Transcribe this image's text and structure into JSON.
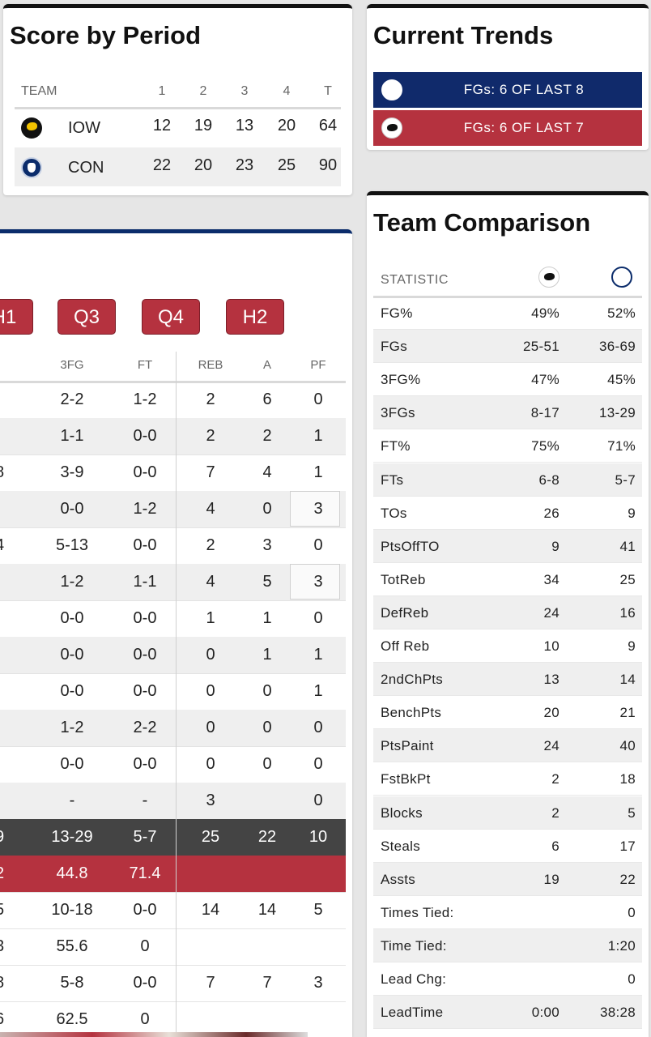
{
  "score_by_period": {
    "title": "Score by Period",
    "headers": [
      "TEAM",
      "1",
      "2",
      "3",
      "4",
      "T"
    ],
    "rows": [
      {
        "team": "IOW",
        "logo": "iowa-hawkeye-icon",
        "scores": [
          "12",
          "19",
          "13",
          "20",
          "64"
        ]
      },
      {
        "team": "CON",
        "logo": "uconn-husky-icon",
        "scores": [
          "22",
          "20",
          "23",
          "25",
          "90"
        ]
      }
    ]
  },
  "current_trends": {
    "title": "Current Trends",
    "rows": [
      {
        "text": "FGs: 6 OF LAST 8",
        "color": "#102a6b",
        "logo": "uconn-husky-icon"
      },
      {
        "text": "FGs: 6 OF LAST 7",
        "color": "#b5323f",
        "logo": "iowa-hawkeye-icon"
      }
    ]
  },
  "team_comparison": {
    "title": "Team Comparison",
    "header_label": "STATISTIC",
    "rows": [
      {
        "label": "FG%",
        "iow": "49%",
        "con": "52%"
      },
      {
        "label": "FGs",
        "iow": "25-51",
        "con": "36-69"
      },
      {
        "label": "3FG%",
        "iow": "47%",
        "con": "45%"
      },
      {
        "label": "3FGs",
        "iow": "8-17",
        "con": "13-29"
      },
      {
        "label": "FT%",
        "iow": "75%",
        "con": "71%"
      },
      {
        "label": "FTs",
        "iow": "6-8",
        "con": "5-7"
      },
      {
        "label": "TOs",
        "iow": "26",
        "con": "9"
      },
      {
        "label": "PtsOffTO",
        "iow": "9",
        "con": "41"
      },
      {
        "label": "TotReb",
        "iow": "34",
        "con": "25"
      },
      {
        "label": "DefReb",
        "iow": "24",
        "con": "16"
      },
      {
        "label": "Off Reb",
        "iow": "10",
        "con": "9"
      },
      {
        "label": "2ndChPts",
        "iow": "13",
        "con": "14"
      },
      {
        "label": "BenchPts",
        "iow": "20",
        "con": "21"
      },
      {
        "label": "PtsPaint",
        "iow": "24",
        "con": "40"
      },
      {
        "label": "FstBkPt",
        "iow": "2",
        "con": "18"
      },
      {
        "label": "Blocks",
        "iow": "2",
        "con": "5"
      },
      {
        "label": "Steals",
        "iow": "6",
        "con": "17"
      },
      {
        "label": "Assts",
        "iow": "19",
        "con": "22"
      },
      {
        "label": "Times Tied:",
        "iow": "",
        "con": "0"
      },
      {
        "label": "Time Tied:",
        "iow": "",
        "con": "1:20"
      },
      {
        "label": "Lead Chg:",
        "iow": "",
        "con": "0"
      },
      {
        "label": "LeadTime",
        "iow": "0:00",
        "con": "38:28"
      }
    ]
  },
  "box_score": {
    "period_buttons": [
      "H1",
      "Q3",
      "Q4",
      "H2"
    ],
    "headers": {
      "fg": "",
      "tfg": "3FG",
      "ft": "FT",
      "reb": "REB",
      "a": "A",
      "pf": "PF"
    },
    "rows": [
      {
        "fg": "",
        "tfg": "2-2",
        "ft": "1-2",
        "reb": "2",
        "a": "6",
        "pf": "0",
        "style": ""
      },
      {
        "fg": "",
        "tfg": "1-1",
        "ft": "0-0",
        "reb": "2",
        "a": "2",
        "pf": "1",
        "style": "alt"
      },
      {
        "fg": "8",
        "tfg": "3-9",
        "ft": "0-0",
        "reb": "7",
        "a": "4",
        "pf": "1",
        "style": ""
      },
      {
        "fg": "",
        "tfg": "0-0",
        "ft": "1-2",
        "reb": "4",
        "a": "0",
        "pf": "3",
        "style": "alt",
        "pf_box": true
      },
      {
        "fg": "4",
        "tfg": "5-13",
        "ft": "0-0",
        "reb": "2",
        "a": "3",
        "pf": "0",
        "style": ""
      },
      {
        "fg": "",
        "tfg": "1-2",
        "ft": "1-1",
        "reb": "4",
        "a": "5",
        "pf": "3",
        "style": "alt",
        "pf_box": true
      },
      {
        "fg": "",
        "tfg": "0-0",
        "ft": "0-0",
        "reb": "1",
        "a": "1",
        "pf": "0",
        "style": ""
      },
      {
        "fg": "",
        "tfg": "0-0",
        "ft": "0-0",
        "reb": "0",
        "a": "1",
        "pf": "1",
        "style": "alt"
      },
      {
        "fg": "",
        "tfg": "0-0",
        "ft": "0-0",
        "reb": "0",
        "a": "0",
        "pf": "1",
        "style": ""
      },
      {
        "fg": "",
        "tfg": "1-2",
        "ft": "2-2",
        "reb": "0",
        "a": "0",
        "pf": "0",
        "style": "alt"
      },
      {
        "fg": "",
        "tfg": "0-0",
        "ft": "0-0",
        "reb": "0",
        "a": "0",
        "pf": "0",
        "style": ""
      },
      {
        "fg": "",
        "tfg": "-",
        "ft": "-",
        "reb": "3",
        "a": "",
        "pf": "0",
        "style": "alt"
      },
      {
        "fg": "9",
        "tfg": "13-29",
        "ft": "5-7",
        "reb": "25",
        "a": "22",
        "pf": "10",
        "style": "dark"
      },
      {
        "fg": "2",
        "tfg": "44.8",
        "ft": "71.4",
        "reb": "",
        "a": "",
        "pf": "",
        "style": "red"
      },
      {
        "fg": "5",
        "tfg": "10-18",
        "ft": "0-0",
        "reb": "14",
        "a": "14",
        "pf": "5",
        "style": ""
      },
      {
        "fg": "3",
        "tfg": "55.6",
        "ft": "0",
        "reb": "",
        "a": "",
        "pf": "",
        "style": ""
      },
      {
        "fg": "8",
        "tfg": "5-8",
        "ft": "0-0",
        "reb": "7",
        "a": "7",
        "pf": "3",
        "style": ""
      },
      {
        "fg": "6",
        "tfg": "62.5",
        "ft": "0",
        "reb": "",
        "a": "",
        "pf": "",
        "style": ""
      }
    ]
  }
}
